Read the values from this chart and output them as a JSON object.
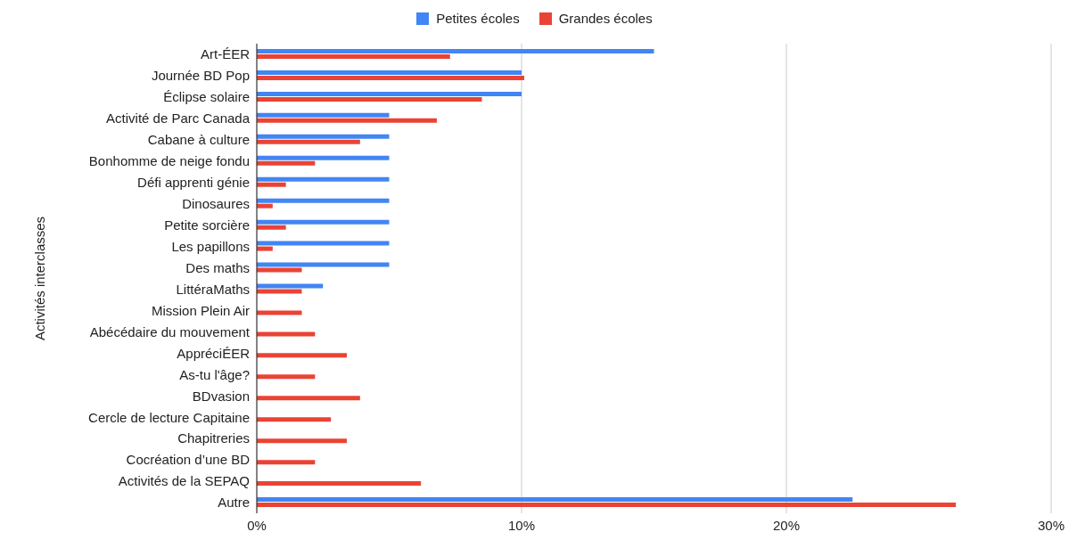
{
  "chart_data": {
    "type": "bar",
    "orientation": "horizontal",
    "ylabel": "Activités interclasses",
    "categories": [
      "Art-ÉER",
      "Journée BD Pop",
      "Éclipse solaire",
      "Activité de Parc Canada",
      "Cabane à culture",
      "Bonhomme de neige fondu",
      "Défi apprenti génie",
      "Dinosaures",
      "Petite sorcière",
      "Les papillons",
      "Des maths",
      "LittéraMaths",
      "Mission Plein Air",
      "Abécédaire du mouvement",
      "AppréciÉER",
      "As-tu l'âge?",
      "BDvasion",
      "Cercle de lecture Capitaine",
      "Chapitreries",
      "Cocréation d’une BD",
      "Activités de la SEPAQ",
      "Autre"
    ],
    "series": [
      {
        "name": "Petites écoles",
        "color": "#4285f4",
        "values": [
          15,
          10,
          10,
          5,
          5,
          5,
          5,
          5,
          5,
          5,
          5,
          2.5,
          0,
          0,
          0,
          0,
          0,
          0,
          0,
          0,
          0,
          22.5
        ]
      },
      {
        "name": "Grandes écoles",
        "color": "#ea4335",
        "values": [
          7.3,
          10.1,
          8.5,
          6.8,
          3.9,
          2.2,
          1.1,
          0.6,
          1.1,
          0.6,
          1.7,
          1.7,
          1.7,
          2.2,
          3.4,
          2.2,
          3.9,
          2.8,
          3.4,
          2.2,
          6.2,
          26.4
        ]
      }
    ],
    "xlim": [
      0,
      30
    ],
    "xticks": [
      {
        "value": 0,
        "label": "0%"
      },
      {
        "value": 10,
        "label": "10%"
      },
      {
        "value": 20,
        "label": "20%"
      },
      {
        "value": 30,
        "label": "30%"
      }
    ],
    "grid": "x",
    "legend": "top"
  }
}
